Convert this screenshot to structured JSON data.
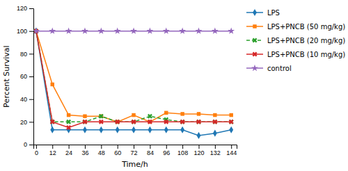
{
  "chart_data": {
    "type": "line",
    "xlabel": "Time/h",
    "ylabel": "Percent Survival",
    "x": [
      0,
      12,
      24,
      36,
      48,
      60,
      72,
      84,
      96,
      108,
      120,
      132,
      144
    ],
    "series": [
      {
        "name": "LPS",
        "marker": "diamond",
        "line_style": "solid",
        "values": [
          100,
          13,
          13,
          13,
          13,
          13,
          13,
          13,
          13,
          13,
          8,
          10,
          13
        ]
      },
      {
        "name": "LPS+PNCB (50 mg/kg)",
        "marker": "square",
        "line_style": "solid",
        "values": [
          100,
          53,
          26,
          25,
          25,
          20,
          26,
          20,
          28,
          27,
          27,
          26,
          26
        ]
      },
      {
        "name": "LPS+PNCB (20 mg/kg)",
        "marker": "x",
        "line_style": "dashed",
        "values": [
          100,
          20,
          20,
          20,
          25,
          20,
          20,
          25,
          22,
          20,
          20,
          20,
          20
        ]
      },
      {
        "name": "LPS+PNCB (10 mg/kg)",
        "marker": "x",
        "line_style": "solid",
        "values": [
          100,
          20,
          15,
          20,
          20,
          20,
          20,
          20,
          20,
          20,
          20,
          20,
          20
        ]
      },
      {
        "name": "control",
        "marker": "star",
        "line_style": "solid",
        "values": [
          100,
          100,
          100,
          100,
          100,
          100,
          100,
          100,
          100,
          100,
          100,
          100,
          100
        ]
      }
    ],
    "xlim": [
      -2,
      148
    ],
    "xticks": [
      0,
      12,
      24,
      36,
      48,
      60,
      72,
      84,
      96,
      108,
      120,
      132,
      144
    ],
    "ylim": [
      0,
      120
    ],
    "yticks": [
      0,
      20,
      40,
      60,
      80,
      100,
      120
    ],
    "grid": false,
    "legend": "right"
  }
}
